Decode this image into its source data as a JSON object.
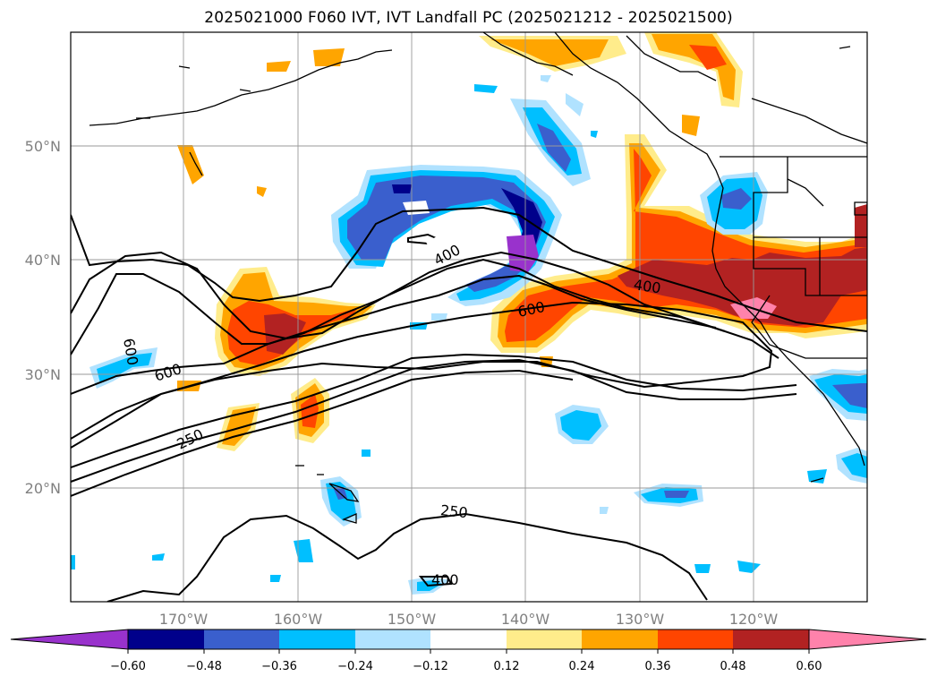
{
  "title": "2025021000 F060 IVT, IVT Landfall PC (2025021212 - 2025021500)",
  "map": {
    "lat_labels": [
      "50°N",
      "40°N",
      "30°N",
      "20°N"
    ],
    "lon_labels": [
      "170°W",
      "160°W",
      "150°W",
      "140°W",
      "130°W",
      "120°W"
    ],
    "contour_labels": [
      "400",
      "400",
      "600",
      "600",
      "600",
      "250",
      "250",
      "400"
    ]
  },
  "colorbar": {
    "levels": [
      "−0.60",
      "−0.48",
      "−0.36",
      "−0.24",
      "−0.12",
      "0.12",
      "0.24",
      "0.36",
      "0.48",
      "0.60"
    ],
    "colors": [
      "#9932cc",
      "#00008b",
      "#3a5fcd",
      "#00bfff",
      "#b0e2ff",
      "#ffffff",
      "#ffec8b",
      "#ffa500",
      "#ff4500",
      "#b22222",
      "#ff82ab"
    ]
  }
}
